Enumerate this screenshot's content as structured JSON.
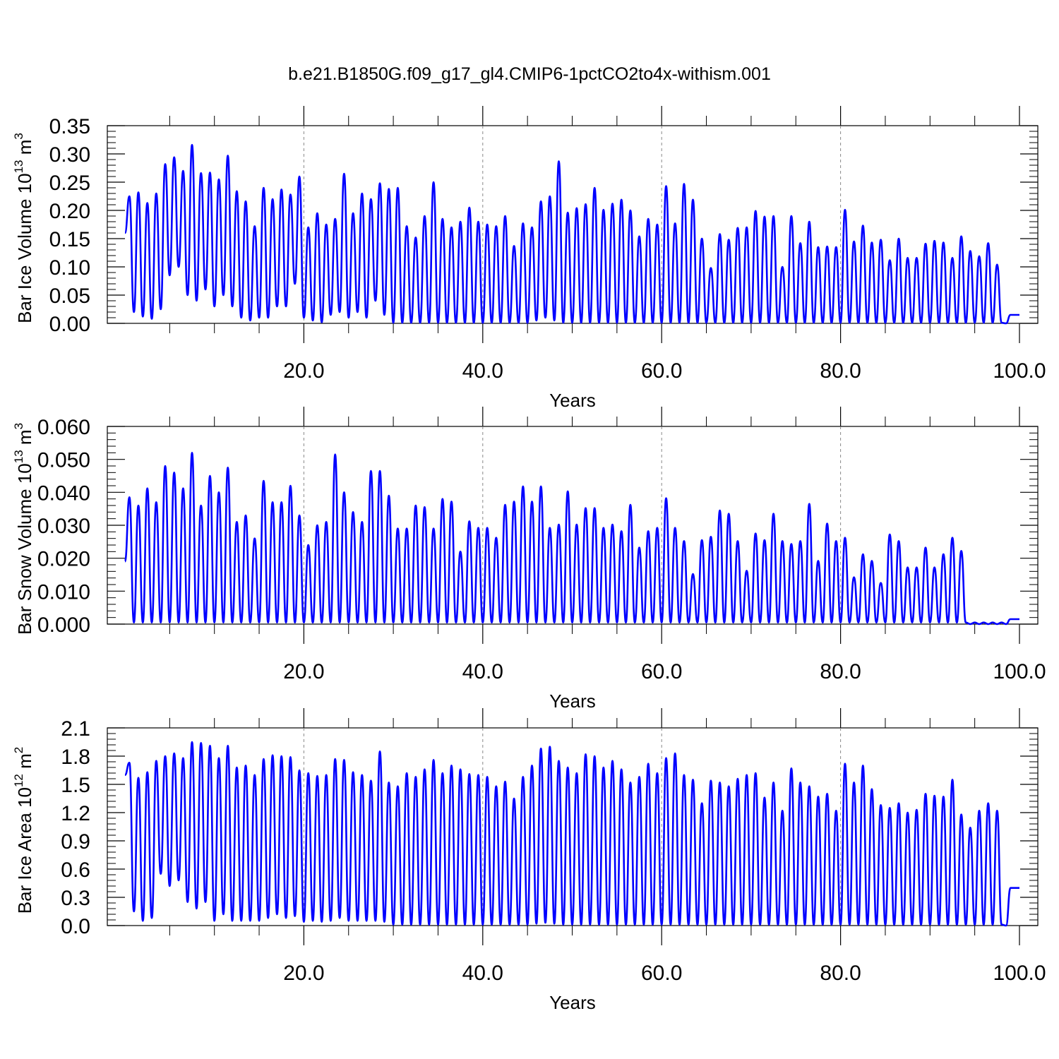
{
  "figure_title": "b.e21.B1850G.f09_g17_gl4.CMIP6-1pctCO2to4x-withism.001",
  "line_color": "#0000ff",
  "chart_data": [
    {
      "type": "line",
      "title": "",
      "ylabel": {
        "text": "Bar Ice Volume 10",
        "sup1": "13",
        "mid": " m",
        "sup2": "3"
      },
      "xlabel": "Years",
      "xlim": [
        0,
        101
      ],
      "ylim": [
        0,
        0.35
      ],
      "x_ticks": [
        20,
        40,
        60,
        80,
        100
      ],
      "x_tick_labels": [
        "20.0",
        "40.0",
        "60.0",
        "80.0",
        "100.0"
      ],
      "y_ticks": [
        0,
        0.05,
        0.1,
        0.15,
        0.2,
        0.25,
        0.3,
        0.35
      ],
      "y_tick_labels": [
        "0.00",
        "0.05",
        "0.10",
        "0.15",
        "0.20",
        "0.25",
        "0.30",
        "0.35"
      ],
      "grid": "vertical dashed at x ticks",
      "series": [
        {
          "x_start": 0.5,
          "x_step": 1,
          "peaks": [
            0.225,
            0.232,
            0.213,
            0.23,
            0.282,
            0.294,
            0.27,
            0.316,
            0.266,
            0.267,
            0.255,
            0.297,
            0.234,
            0.216,
            0.172,
            0.24,
            0.22,
            0.237,
            0.228,
            0.26,
            0.17,
            0.195,
            0.175,
            0.185,
            0.265,
            0.195,
            0.23,
            0.22,
            0.248,
            0.238,
            0.24,
            0.172,
            0.152,
            0.19,
            0.25,
            0.185,
            0.17,
            0.18,
            0.205,
            0.18,
            0.175,
            0.172,
            0.19,
            0.137,
            0.177,
            0.17,
            0.216,
            0.225,
            0.287,
            0.196,
            0.204,
            0.211,
            0.24,
            0.201,
            0.212,
            0.219,
            0.2,
            0.154,
            0.185,
            0.175,
            0.243,
            0.177,
            0.247,
            0.219,
            0.15,
            0.098,
            0.158,
            0.148,
            0.169,
            0.17,
            0.199,
            0.189,
            0.19,
            0.1,
            0.19,
            0.142,
            0.18,
            0.135,
            0.136,
            0.135,
            0.201,
            0.145,
            0.173,
            0.143,
            0.148,
            0.112,
            0.15,
            0.116,
            0.116,
            0.141,
            0.146,
            0.143,
            0.116,
            0.154,
            0.128,
            0.119,
            0.142,
            0.104,
            0.0,
            0.0
          ],
          "troughs": [
            0.16,
            0.02,
            0.012,
            0.008,
            0.025,
            0.085,
            0.1,
            0.05,
            0.04,
            0.06,
            0.03,
            0.05,
            0.03,
            0.01,
            0.005,
            0.01,
            0.01,
            0.03,
            0.03,
            0.07,
            0.01,
            0.005,
            0.002,
            0.015,
            0.02,
            0.01,
            0.02,
            0.01,
            0.04,
            0.015,
            0.001,
            0.001,
            0.001,
            0.001,
            0.001,
            0.001,
            0.001,
            0.001,
            0.001,
            0.001,
            0.001,
            0.001,
            0.001,
            0.001,
            0.001,
            0.001,
            0.005,
            0.01,
            0.005,
            0.001,
            0.001,
            0.001,
            0.001,
            0.001,
            0.001,
            0.001,
            0.001,
            0.001,
            0.001,
            0.001,
            0.001,
            0.001,
            0.001,
            0.001,
            0.001,
            0.001,
            0.001,
            0.001,
            0.001,
            0.001,
            0.001,
            0.001,
            0.001,
            0.001,
            0.001,
            0.001,
            0.001,
            0.001,
            0.001,
            0.001,
            0.001,
            0.001,
            0.001,
            0.001,
            0.001,
            0.001,
            0.001,
            0.001,
            0.001,
            0.001,
            0.001,
            0.001,
            0.001,
            0.001,
            0.001,
            0.001,
            0.001,
            0.001,
            0.001,
            0.015
          ]
        }
      ]
    },
    {
      "type": "line",
      "title": "",
      "ylabel": {
        "text": "Bar Snow Volume 10",
        "sup1": "13",
        "mid": " m",
        "sup2": "3"
      },
      "xlabel": "Years",
      "xlim": [
        0,
        101
      ],
      "ylim": [
        0,
        0.06
      ],
      "x_ticks": [
        20,
        40,
        60,
        80,
        100
      ],
      "x_tick_labels": [
        "20.0",
        "40.0",
        "60.0",
        "80.0",
        "100.0"
      ],
      "y_ticks": [
        0,
        0.01,
        0.02,
        0.03,
        0.04,
        0.05,
        0.06
      ],
      "y_tick_labels": [
        "0.000",
        "0.010",
        "0.020",
        "0.030",
        "0.040",
        "0.050",
        "0.060"
      ],
      "grid": "vertical dashed at x ticks",
      "series": [
        {
          "x_start": 0.5,
          "x_step": 1,
          "peaks": [
            0.0385,
            0.036,
            0.0412,
            0.037,
            0.048,
            0.046,
            0.0412,
            0.052,
            0.036,
            0.045,
            0.04,
            0.0475,
            0.031,
            0.033,
            0.026,
            0.0435,
            0.037,
            0.037,
            0.042,
            0.033,
            0.024,
            0.03,
            0.031,
            0.0515,
            0.04,
            0.034,
            0.031,
            0.0465,
            0.0465,
            0.039,
            0.029,
            0.029,
            0.036,
            0.0355,
            0.029,
            0.038,
            0.0372,
            0.022,
            0.0312,
            0.0292,
            0.0292,
            0.0262,
            0.0362,
            0.0372,
            0.0418,
            0.0372,
            0.0418,
            0.0292,
            0.0302,
            0.0403,
            0.0302,
            0.0352,
            0.0352,
            0.0292,
            0.0302,
            0.0282,
            0.0362,
            0.0232,
            0.0282,
            0.0292,
            0.0382,
            0.0292,
            0.0252,
            0.0152,
            0.0255,
            0.0265,
            0.0345,
            0.0335,
            0.0252,
            0.0162,
            0.0275,
            0.0255,
            0.0335,
            0.0252,
            0.0243,
            0.0252,
            0.0365,
            0.0192,
            0.0305,
            0.0252,
            0.0262,
            0.0142,
            0.0212,
            0.0192,
            0.0125,
            0.0272,
            0.0252,
            0.0172,
            0.0172,
            0.0232,
            0.0172,
            0.0212,
            0.0262,
            0.0222,
            0.0,
            0.0,
            0.0,
            0.0,
            0.0,
            0.0
          ],
          "troughs": [
            0.019,
            0.0005,
            0.0005,
            0.0005,
            0.0005,
            0.0005,
            0.0005,
            0.0005,
            0.0005,
            0.0005,
            0.0005,
            0.0005,
            0.0005,
            0.0005,
            0.0005,
            0.0005,
            0.0005,
            0.0005,
            0.0005,
            0.0005,
            0.0005,
            0.0005,
            0.0005,
            0.0005,
            0.0005,
            0.0005,
            0.0005,
            0.0005,
            0.0005,
            0.0005,
            0.0005,
            0.0005,
            0.0005,
            0.0005,
            0.0005,
            0.0005,
            0.0005,
            0.0005,
            0.0005,
            0.0005,
            0.0005,
            0.0005,
            0.0005,
            0.0005,
            0.0005,
            0.0005,
            0.0005,
            0.0005,
            0.0005,
            0.0005,
            0.0005,
            0.0005,
            0.0005,
            0.0005,
            0.0005,
            0.0005,
            0.0005,
            0.0005,
            0.0005,
            0.0005,
            0.0005,
            0.0005,
            0.0005,
            0.0005,
            0.0005,
            0.0005,
            0.0005,
            0.0005,
            0.0005,
            0.0005,
            0.0005,
            0.0005,
            0.0005,
            0.0005,
            0.0005,
            0.0005,
            0.0005,
            0.0005,
            0.0005,
            0.0005,
            0.0005,
            0.0005,
            0.0005,
            0.0005,
            0.0005,
            0.0005,
            0.0005,
            0.0005,
            0.0005,
            0.0005,
            0.0005,
            0.0005,
            0.0005,
            0.0005,
            0.0005,
            0.0005,
            0.0005,
            0.0005,
            0.0005,
            0.0015
          ]
        }
      ]
    },
    {
      "type": "line",
      "title": "",
      "ylabel": {
        "text": "Bar Ice Area 10",
        "sup1": "12",
        "mid": " m",
        "sup2": "2"
      },
      "xlabel": "Years",
      "xlim": [
        0,
        101
      ],
      "ylim": [
        0,
        2.1
      ],
      "x_ticks": [
        20,
        40,
        60,
        80,
        100
      ],
      "x_tick_labels": [
        "20.0",
        "40.0",
        "60.0",
        "80.0",
        "100.0"
      ],
      "y_ticks": [
        0,
        0.3,
        0.6,
        0.9,
        1.2,
        1.5,
        1.8,
        2.1
      ],
      "y_tick_labels": [
        "0.0",
        "0.3",
        "0.6",
        "0.9",
        "1.2",
        "1.5",
        "1.8",
        "2.1"
      ],
      "grid": "vertical dashed at x ticks",
      "series": [
        {
          "x_start": 0.5,
          "x_step": 1,
          "peaks": [
            1.73,
            1.57,
            1.63,
            1.75,
            1.8,
            1.83,
            1.78,
            1.95,
            1.94,
            1.91,
            1.78,
            1.91,
            1.68,
            1.7,
            1.6,
            1.77,
            1.81,
            1.8,
            1.79,
            1.65,
            1.62,
            1.59,
            1.6,
            1.77,
            1.76,
            1.63,
            1.6,
            1.54,
            1.85,
            1.52,
            1.48,
            1.62,
            1.58,
            1.66,
            1.76,
            1.62,
            1.7,
            1.66,
            1.61,
            1.6,
            1.58,
            1.48,
            1.53,
            1.35,
            1.58,
            1.7,
            1.88,
            1.9,
            1.75,
            1.68,
            1.62,
            1.82,
            1.8,
            1.68,
            1.75,
            1.66,
            1.52,
            1.58,
            1.72,
            1.62,
            1.78,
            1.83,
            1.6,
            1.55,
            1.3,
            1.54,
            1.52,
            1.48,
            1.56,
            1.6,
            1.62,
            1.36,
            1.52,
            1.22,
            1.67,
            1.52,
            1.48,
            1.37,
            1.4,
            1.22,
            1.72,
            1.52,
            1.7,
            1.45,
            1.28,
            1.25,
            1.3,
            1.2,
            1.23,
            1.4,
            1.38,
            1.37,
            1.55,
            1.18,
            1.04,
            1.22,
            1.3,
            1.22,
            0.0,
            0.0
          ],
          "troughs": [
            1.6,
            0.15,
            0.05,
            0.08,
            0.55,
            0.42,
            0.48,
            0.25,
            0.18,
            0.25,
            0.05,
            0.12,
            0.05,
            0.05,
            0.05,
            0.05,
            0.08,
            0.12,
            0.08,
            0.1,
            0.04,
            0.05,
            0.04,
            0.05,
            0.08,
            0.05,
            0.05,
            0.05,
            0.05,
            0.04,
            0.01,
            0.01,
            0.01,
            0.01,
            0.01,
            0.01,
            0.01,
            0.01,
            0.01,
            0.01,
            0.01,
            0.01,
            0.01,
            0.01,
            0.01,
            0.01,
            0.02,
            0.03,
            0.02,
            0.01,
            0.01,
            0.01,
            0.01,
            0.01,
            0.01,
            0.01,
            0.01,
            0.01,
            0.01,
            0.01,
            0.01,
            0.01,
            0.01,
            0.01,
            0.01,
            0.01,
            0.01,
            0.01,
            0.01,
            0.01,
            0.01,
            0.01,
            0.01,
            0.01,
            0.01,
            0.01,
            0.01,
            0.01,
            0.01,
            0.01,
            0.01,
            0.01,
            0.01,
            0.01,
            0.01,
            0.01,
            0.01,
            0.01,
            0.01,
            0.01,
            0.01,
            0.01,
            0.01,
            0.01,
            0.01,
            0.01,
            0.01,
            0.01,
            0.01,
            0.4
          ]
        }
      ]
    }
  ]
}
